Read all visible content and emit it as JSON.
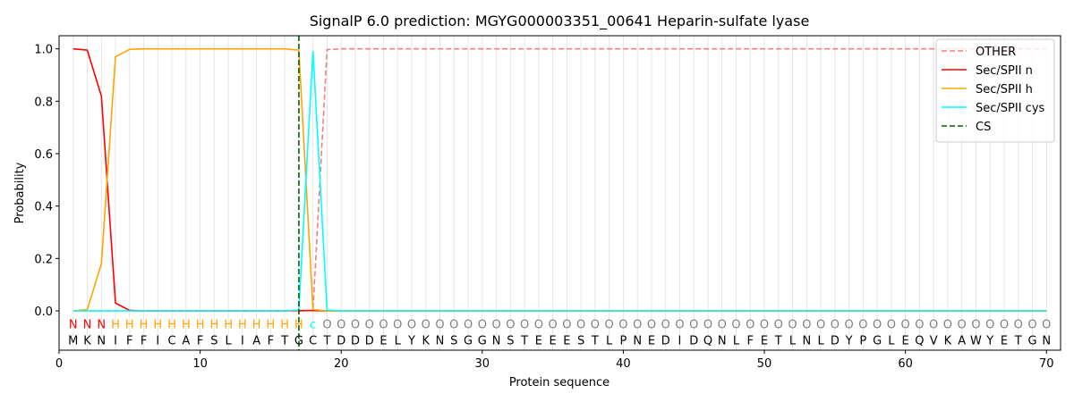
{
  "chart_data": {
    "type": "line",
    "title": "SignalP 6.0 prediction: MGYG000003351_00641 Heparin-sulfate lyase",
    "xlabel": "Protein sequence",
    "ylabel": "Probability",
    "xlim": [
      0,
      71
    ],
    "ylim": [
      -0.15,
      1.05
    ],
    "xticks": [
      0,
      10,
      20,
      30,
      40,
      50,
      60,
      70
    ],
    "yticks": [
      0.0,
      0.2,
      0.4,
      0.6,
      0.8,
      1.0
    ],
    "ytick_labels": [
      "0.0",
      "0.2",
      "0.4",
      "0.6",
      "0.8",
      "1.0"
    ],
    "legend_position": "top-right",
    "sequence": [
      "M",
      "K",
      "N",
      "I",
      "F",
      "F",
      "I",
      "C",
      "A",
      "F",
      "S",
      "L",
      "I",
      "A",
      "F",
      "T",
      "G",
      "C",
      "T",
      "D",
      "D",
      "D",
      "E",
      "L",
      "Y",
      "K",
      "N",
      "S",
      "G",
      "G",
      "N",
      "S",
      "T",
      "E",
      "E",
      "E",
      "S",
      "T",
      "L",
      "P",
      "N",
      "E",
      "D",
      "I",
      "D",
      "Q",
      "N",
      "L",
      "F",
      "E",
      "T",
      "L",
      "N",
      "L",
      "D",
      "Y",
      "P",
      "G",
      "L",
      "E",
      "Q",
      "V",
      "K",
      "A",
      "W",
      "Y",
      "E",
      "T",
      "G",
      "N"
    ],
    "tags": [
      "N",
      "N",
      "N",
      "H",
      "H",
      "H",
      "H",
      "H",
      "H",
      "H",
      "H",
      "H",
      "H",
      "H",
      "H",
      "H",
      "H",
      "c",
      "O",
      "O",
      "O",
      "O",
      "O",
      "O",
      "O",
      "O",
      "O",
      "O",
      "O",
      "O",
      "O",
      "O",
      "O",
      "O",
      "O",
      "O",
      "O",
      "O",
      "O",
      "O",
      "O",
      "O",
      "O",
      "O",
      "O",
      "O",
      "O",
      "O",
      "O",
      "O",
      "O",
      "O",
      "O",
      "O",
      "O",
      "O",
      "O",
      "O",
      "O",
      "O",
      "O",
      "O",
      "O",
      "O",
      "O",
      "O",
      "O",
      "O",
      "O",
      "O"
    ],
    "tag_colors": {
      "N": "#ff0000",
      "H": "#ffa500",
      "c": "#00ffff",
      "O": "#808080"
    },
    "cleavage_site": 17,
    "series": [
      {
        "name": "OTHER",
        "color": "#f08080",
        "dash": true,
        "head": [
          0,
          0,
          0,
          0,
          0,
          0,
          0,
          0,
          0,
          0,
          0,
          0,
          0,
          0,
          0,
          0,
          0,
          0.002,
          0.997,
          1.0
        ],
        "tail_value": 1.0
      },
      {
        "name": "Sec/SPII n",
        "color": "#ff0000",
        "dash": false,
        "head": [
          1.0,
          0.995,
          0.82,
          0.03,
          0.002,
          0,
          0,
          0,
          0,
          0,
          0,
          0,
          0,
          0,
          0,
          0,
          0.001,
          0.001,
          0,
          0
        ],
        "tail_value": 0
      },
      {
        "name": "Sec/SPII h",
        "color": "#ffa500",
        "dash": false,
        "head": [
          0,
          0.005,
          0.18,
          0.97,
          0.998,
          1.0,
          1.0,
          1.0,
          1.0,
          1.0,
          1.0,
          1.0,
          1.0,
          1.0,
          1.0,
          1.0,
          0.995,
          0.005,
          0,
          0
        ],
        "tail_value": 0
      },
      {
        "name": "Sec/SPII cys",
        "color": "#00ffff",
        "dash": false,
        "head": [
          0,
          0,
          0,
          0,
          0,
          0,
          0,
          0,
          0,
          0,
          0,
          0,
          0,
          0,
          0,
          0,
          0.003,
          0.992,
          0.003,
          0
        ],
        "tail_value": 0
      },
      {
        "name": "CS",
        "color": "#006400",
        "dash": true,
        "vertical": true
      }
    ]
  }
}
